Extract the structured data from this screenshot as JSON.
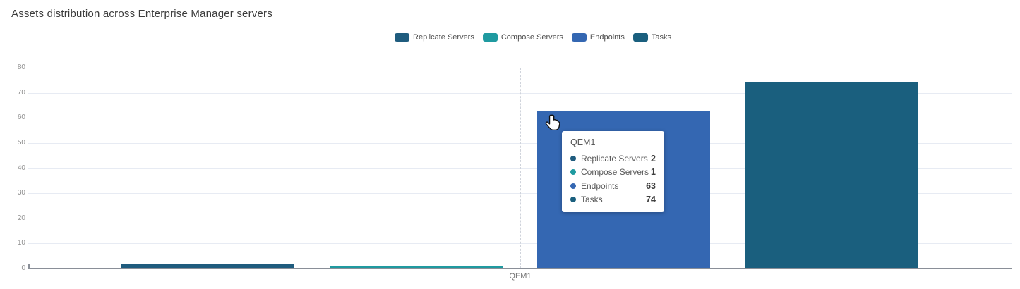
{
  "page": {
    "title": "Assets distribution across Enterprise Manager servers"
  },
  "chart_data": {
    "type": "bar",
    "title": "Assets distribution across Enterprise Manager servers",
    "categories": [
      "QEM1"
    ],
    "series": [
      {
        "name": "Replicate Servers",
        "values": [
          2
        ],
        "color": "#1f5c7e"
      },
      {
        "name": "Compose Servers",
        "values": [
          1
        ],
        "color": "#1f9aa0"
      },
      {
        "name": "Endpoints",
        "values": [
          63
        ],
        "color": "#3467b2"
      },
      {
        "name": "Tasks",
        "values": [
          74
        ],
        "color": "#1a5f7e"
      }
    ],
    "ylim": [
      0,
      80
    ],
    "yticks": [
      0,
      10,
      20,
      30,
      40,
      50,
      60,
      70,
      80
    ],
    "grid": true,
    "legend_position": "top-center",
    "xlabel": "",
    "ylabel": ""
  },
  "tooltip": {
    "title": "QEM1",
    "rows": [
      {
        "label": "Replicate Servers",
        "value": "2",
        "color": "#1f5c7e"
      },
      {
        "label": "Compose Servers",
        "value": "1",
        "color": "#1f9aa0"
      },
      {
        "label": "Endpoints",
        "value": "63",
        "color": "#3467b2"
      },
      {
        "label": "Tasks",
        "value": "74",
        "color": "#1a5f7e"
      }
    ]
  }
}
